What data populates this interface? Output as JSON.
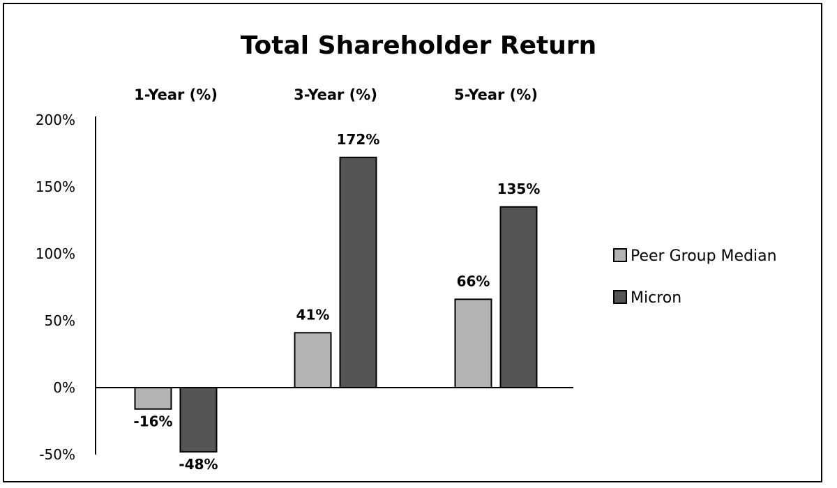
{
  "chart_data": {
    "type": "bar",
    "title": "Total Shareholder Return",
    "categories": [
      "1-Year (%)",
      "3-Year (%)",
      "5-Year (%)"
    ],
    "series": [
      {
        "name": "Peer Group Median",
        "values": [
          -16,
          41,
          66
        ],
        "labels": [
          "-16%",
          "41%",
          "66%"
        ],
        "color": "#b3b3b3"
      },
      {
        "name": "Micron",
        "values": [
          -48,
          172,
          135
        ],
        "labels": [
          "-48%",
          "172%",
          "135%"
        ],
        "color": "#555555"
      }
    ],
    "ylim": [
      -50,
      200
    ],
    "yticks": [
      -50,
      0,
      50,
      100,
      150,
      200
    ],
    "ytick_labels": [
      "-50%",
      "0%",
      "50%",
      "100%",
      "150%",
      "200%"
    ],
    "xlabel": "",
    "ylabel": "",
    "grid": false,
    "legend_position": "right"
  }
}
